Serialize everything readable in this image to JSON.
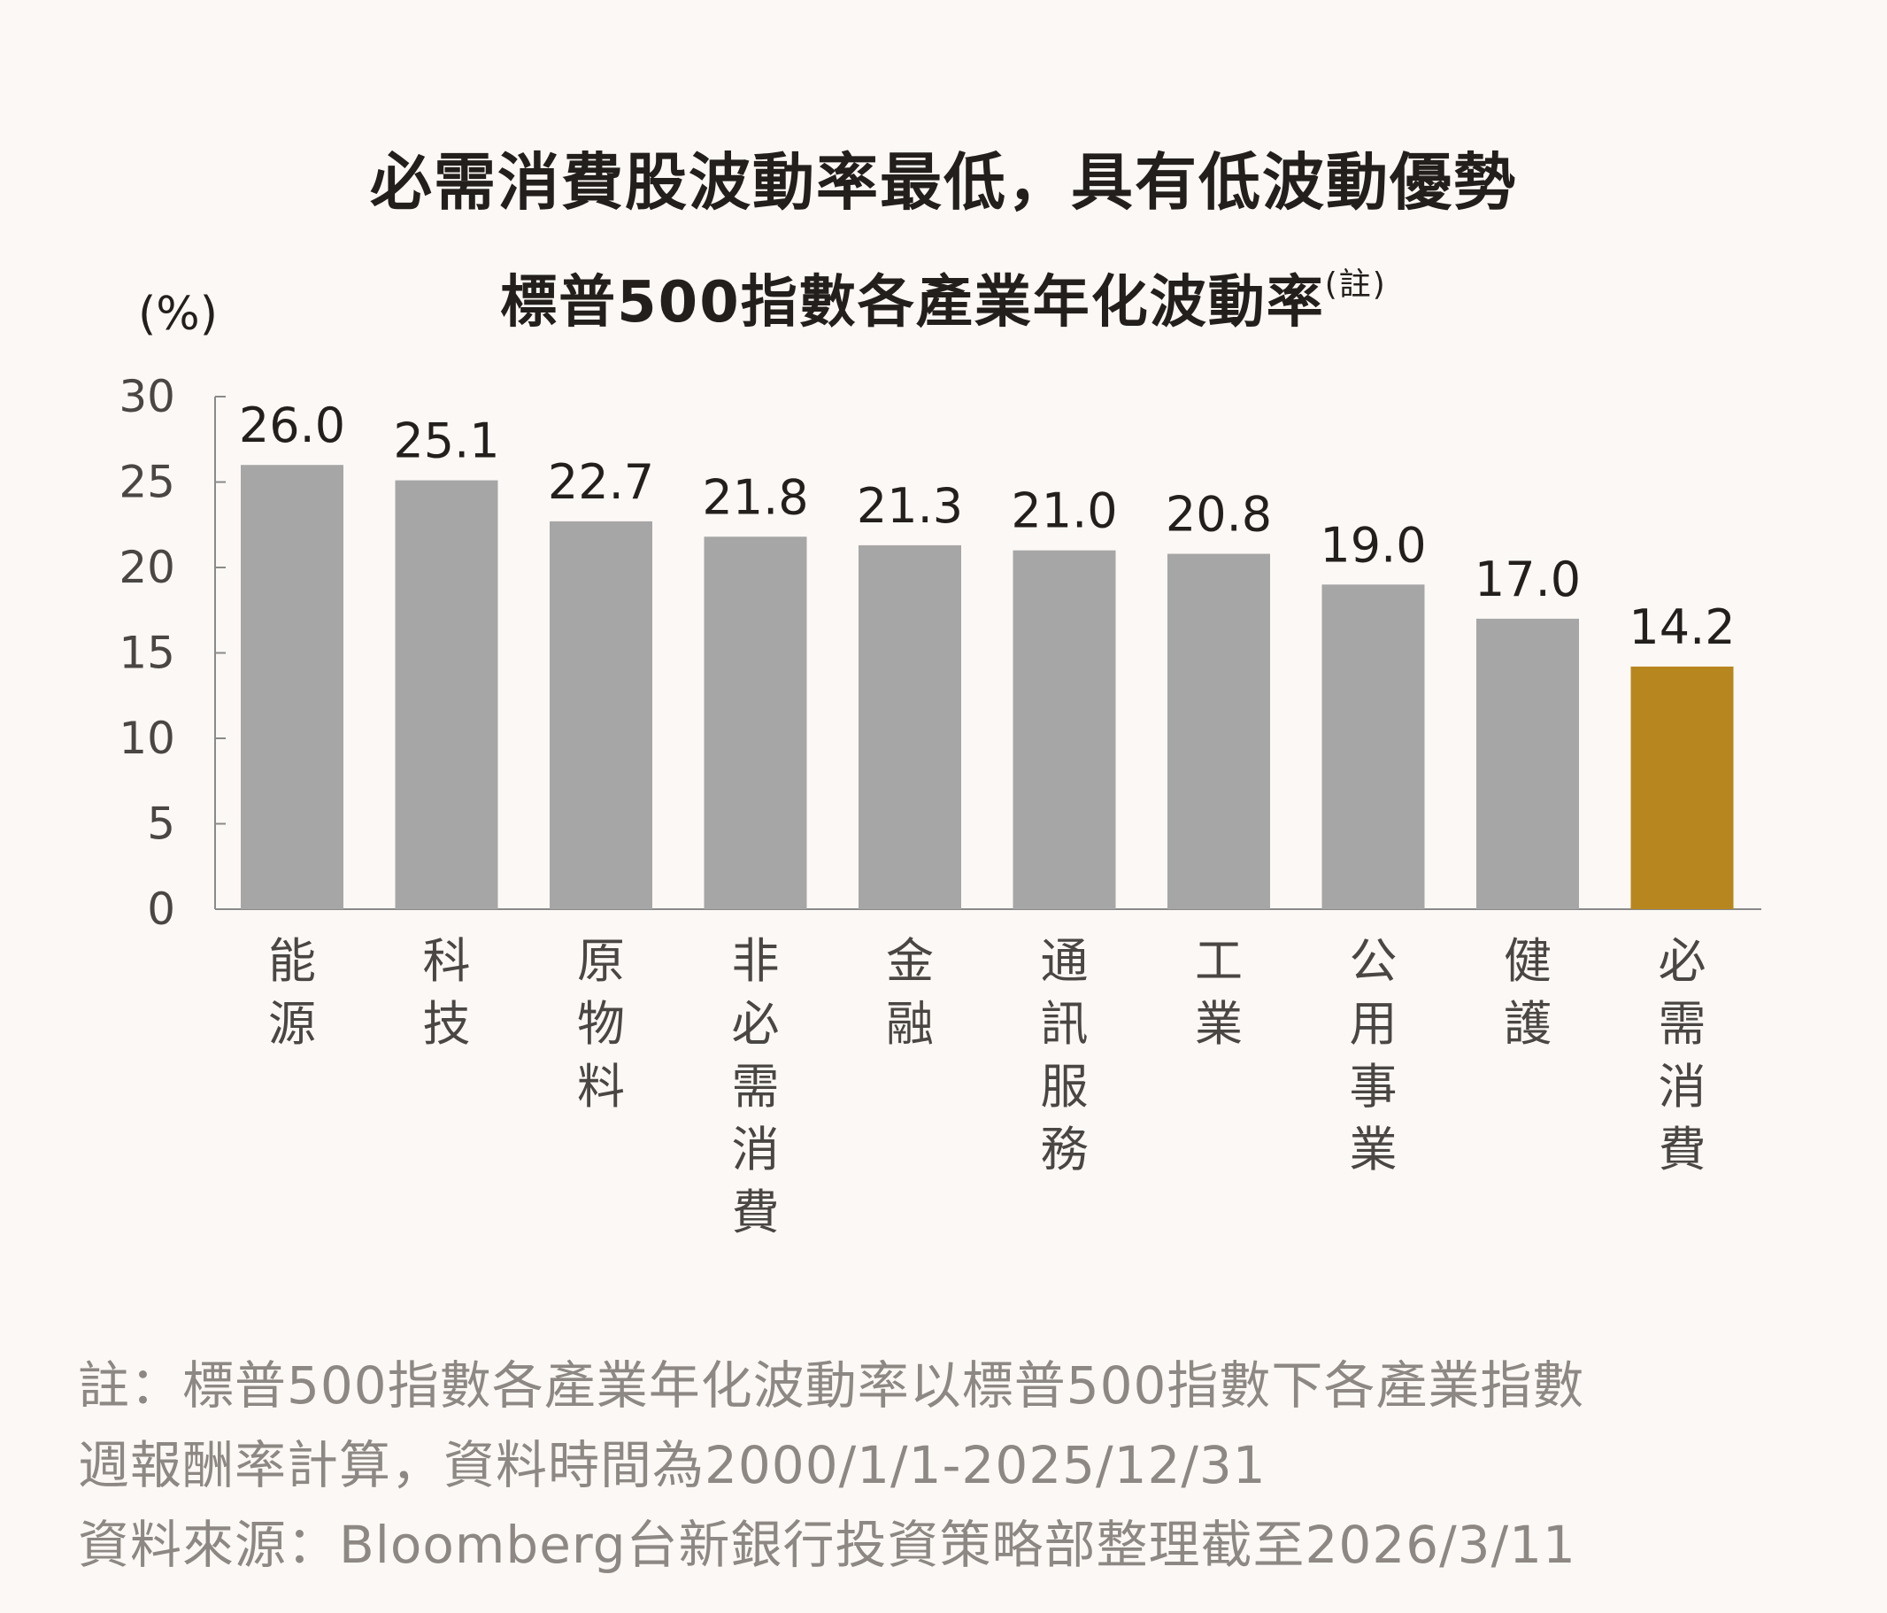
{
  "chart_data": {
    "type": "bar",
    "title": "必需消費股波動率最低，具有低波動優勢",
    "subtitle": "標普500指數各產業年化波動率",
    "subtitle_note": "(註)",
    "ylabel": "(%)",
    "xlabel": "",
    "ylim": [
      0,
      30
    ],
    "yticks": [
      0,
      5,
      10,
      15,
      20,
      25,
      30
    ],
    "grid": false,
    "categories": [
      "能源",
      "科技",
      "原物料",
      "非必需消費",
      "金融",
      "通訊服務",
      "工業",
      "公用事業",
      "健護",
      "必需消費"
    ],
    "values": [
      26.0,
      25.1,
      22.7,
      21.8,
      21.3,
      21.0,
      20.8,
      19.0,
      17.0,
      14.2
    ],
    "value_labels": [
      "26.0",
      "25.1",
      "22.7",
      "21.8",
      "21.3",
      "21.0",
      "20.8",
      "19.0",
      "17.0",
      "14.2"
    ],
    "highlight_index": 9,
    "colors": {
      "bar": "#a6a6a6",
      "highlight": "#b8861f",
      "axis": "#8a8a8a",
      "text": "#231f1c",
      "tick_text": "#4a4643"
    }
  },
  "footnotes": {
    "line1": "註：標普500指數各產業年化波動率以標普500指數下各產業指數",
    "line2": "週報酬率計算，資料時間為2000/1/1-2025/12/31",
    "line3": "資料來源：Bloomberg台新銀行投資策略部整理截至2026/3/11"
  }
}
